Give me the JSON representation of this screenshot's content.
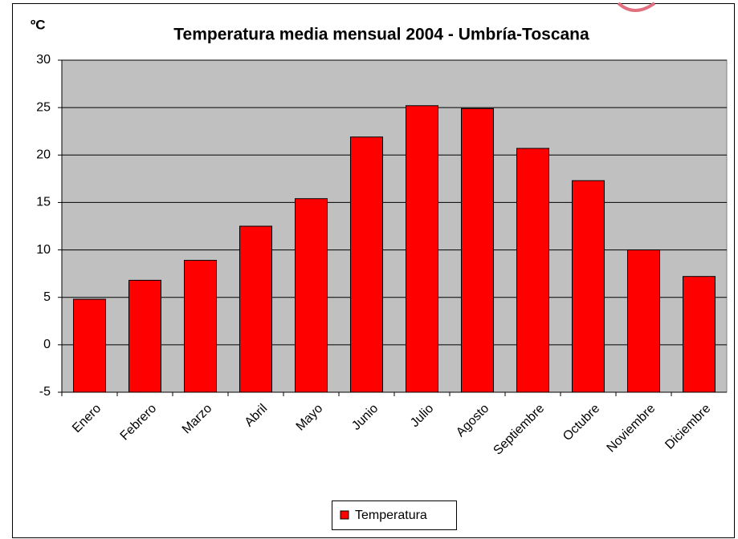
{
  "chart_data": {
    "type": "bar",
    "title": "Temperatura media mensual 2004 - Umbría-Toscana",
    "y_axis_label": "ºC",
    "categories": [
      "Enero",
      "Febrero",
      "Marzo",
      "Abril",
      "Mayo",
      "Junio",
      "Julio",
      "Agosto",
      "Septiembre",
      "Octubre",
      "Noviembre",
      "Diciembre"
    ],
    "series": [
      {
        "name": "Temperatura",
        "color": "#ff0000",
        "values": [
          4.8,
          6.8,
          8.9,
          12.5,
          15.4,
          21.9,
          25.2,
          24.9,
          20.7,
          17.3,
          10.0,
          7.2
        ]
      }
    ],
    "ylim": [
      -5,
      30
    ],
    "yticks": [
      -5,
      0,
      5,
      10,
      15,
      20,
      25,
      30
    ],
    "grid": true,
    "plot_background": "#c0c0c0",
    "legend": "bottom"
  }
}
